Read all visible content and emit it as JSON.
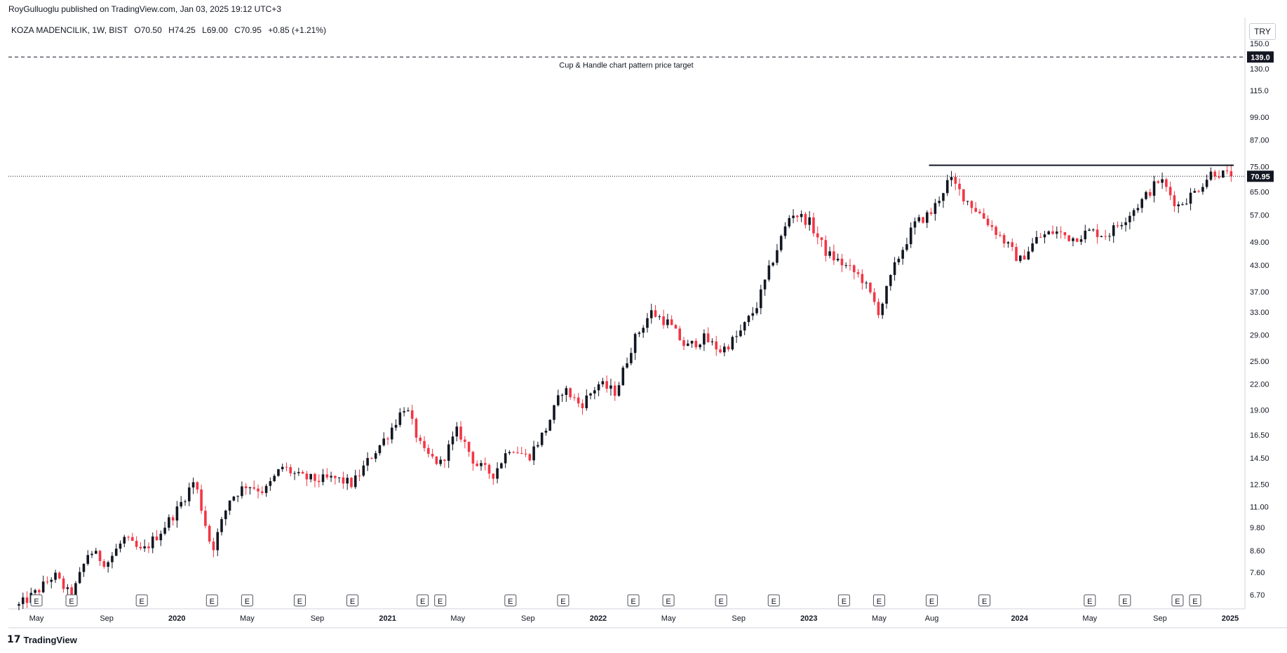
{
  "header": {
    "published": "RoyGulluoglu published on TradingView.com, Jan 03, 2025 19:12 UTC+3"
  },
  "legend": {
    "symbol": "KOZA MADENCILIK, 1W, BIST",
    "open": "O70.50",
    "high": "H74.25",
    "low": "L69.00",
    "close": "C70.95",
    "change": "+0.85 (+1.21%)"
  },
  "currency": "TRY",
  "annotation": {
    "text": "Cup & Handle chart pattern price target",
    "target_label": "139.0"
  },
  "last_price_label": "70.95",
  "footer": {
    "brand": "TradingView",
    "mark": "17"
  },
  "colors": {
    "up": "#131722",
    "down": "#f23645",
    "axis_text": "#131722",
    "grid": "#ffffff"
  },
  "chart_data": {
    "type": "candlestick",
    "scale": "log",
    "interval": "1W",
    "y_ticks": [
      6.7,
      7.6,
      8.6,
      9.8,
      11.0,
      12.5,
      14.5,
      16.5,
      19.0,
      22.0,
      25.0,
      29.0,
      33.0,
      37.0,
      43.0,
      49.0,
      57.0,
      65.0,
      75.0,
      87.0,
      99.0,
      115.0,
      130.0,
      150.0
    ],
    "y_tick_labels": [
      "6.70",
      "7.60",
      "8.60",
      "9.80",
      "11.00",
      "12.50",
      "14.50",
      "16.50",
      "19.00",
      "22.00",
      "25.00",
      "29.00",
      "33.00",
      "37.00",
      "43.00",
      "49.00",
      "57.00",
      "65.00",
      "75.00",
      "87.00",
      "99.00",
      "115.0",
      "130.0",
      "150.0"
    ],
    "x_tick_labels": [
      "May",
      "Sep",
      "2020",
      "May",
      "Sep",
      "2021",
      "May",
      "Sep",
      "2022",
      "May",
      "Sep",
      "2023",
      "May",
      "Aug",
      "2024",
      "May",
      "Sep",
      "2025"
    ],
    "x_ticks": [
      "2019-05",
      "2019-09",
      "2020-01",
      "2020-05",
      "2020-09",
      "2021-01",
      "2021-05",
      "2021-09",
      "2022-01",
      "2022-05",
      "2022-09",
      "2023-01",
      "2023-05",
      "2023-08",
      "2024-01",
      "2024-05",
      "2024-09",
      "2025-01"
    ],
    "earnings_markers": [
      "2019-05",
      "2019-07",
      "2019-11",
      "2020-03",
      "2020-05",
      "2020-08",
      "2020-11",
      "2021-03",
      "2021-04",
      "2021-08",
      "2021-11",
      "2022-03",
      "2022-05",
      "2022-08",
      "2022-11",
      "2023-03",
      "2023-05",
      "2023-08",
      "2023-11",
      "2024-05",
      "2024-07",
      "2024-10",
      "2024-11"
    ],
    "resistance_level": 75.5,
    "target_level": 139.0,
    "last_close": 70.95,
    "anchors": [
      [
        "2019-04",
        6.3
      ],
      [
        "2019-05",
        6.8
      ],
      [
        "2019-06",
        7.5
      ],
      [
        "2019-07",
        6.6
      ],
      [
        "2019-08",
        8.6
      ],
      [
        "2019-09",
        8.0
      ],
      [
        "2019-10",
        9.2
      ],
      [
        "2019-11",
        8.5
      ],
      [
        "2019-12",
        9.5
      ],
      [
        "2020-01",
        10.8
      ],
      [
        "2020-02",
        12.8
      ],
      [
        "2020-03",
        8.6
      ],
      [
        "2020-04",
        11.5
      ],
      [
        "2020-05",
        12.5
      ],
      [
        "2020-06",
        12.0
      ],
      [
        "2020-07",
        13.8
      ],
      [
        "2020-08",
        13.0
      ],
      [
        "2020-09",
        12.8
      ],
      [
        "2020-10",
        12.9
      ],
      [
        "2020-11",
        12.5
      ],
      [
        "2020-12",
        14.5
      ],
      [
        "2021-01",
        16.5
      ],
      [
        "2021-02",
        19.5
      ],
      [
        "2021-03",
        15.0
      ],
      [
        "2021-04",
        14.0
      ],
      [
        "2021-05",
        17.0
      ],
      [
        "2021-06",
        14.0
      ],
      [
        "2021-07",
        13.2
      ],
      [
        "2021-08",
        15.5
      ],
      [
        "2021-09",
        14.5
      ],
      [
        "2021-10",
        17.0
      ],
      [
        "2021-11",
        21.5
      ],
      [
        "2021-12",
        19.5
      ],
      [
        "2022-01",
        22.0
      ],
      [
        "2022-02",
        21.0
      ],
      [
        "2022-03",
        28.0
      ],
      [
        "2022-04",
        33.0
      ],
      [
        "2022-05",
        31.0
      ],
      [
        "2022-06",
        27.0
      ],
      [
        "2022-07",
        28.5
      ],
      [
        "2022-08",
        26.5
      ],
      [
        "2022-09",
        29.0
      ],
      [
        "2022-10",
        34.0
      ],
      [
        "2022-11",
        45.0
      ],
      [
        "2022-12",
        58.0
      ],
      [
        "2023-01",
        55.0
      ],
      [
        "2023-02",
        46.0
      ],
      [
        "2023-03",
        43.0
      ],
      [
        "2023-04",
        40.0
      ],
      [
        "2023-05",
        33.0
      ],
      [
        "2023-06",
        44.0
      ],
      [
        "2023-07",
        54.0
      ],
      [
        "2023-08",
        58.0
      ],
      [
        "2023-09",
        70.0
      ],
      [
        "2023-10",
        62.0
      ],
      [
        "2023-11",
        56.0
      ],
      [
        "2023-12",
        50.0
      ],
      [
        "2024-01",
        44.0
      ],
      [
        "2024-02",
        50.0
      ],
      [
        "2024-03",
        52.0
      ],
      [
        "2024-04",
        50.0
      ],
      [
        "2024-05",
        52.0
      ],
      [
        "2024-06",
        51.0
      ],
      [
        "2024-07",
        56.0
      ],
      [
        "2024-08",
        62.0
      ],
      [
        "2024-09",
        70.0
      ],
      [
        "2024-10",
        60.0
      ],
      [
        "2024-11",
        65.0
      ],
      [
        "2024-12",
        73.0
      ],
      [
        "2025-01",
        70.95
      ]
    ]
  }
}
